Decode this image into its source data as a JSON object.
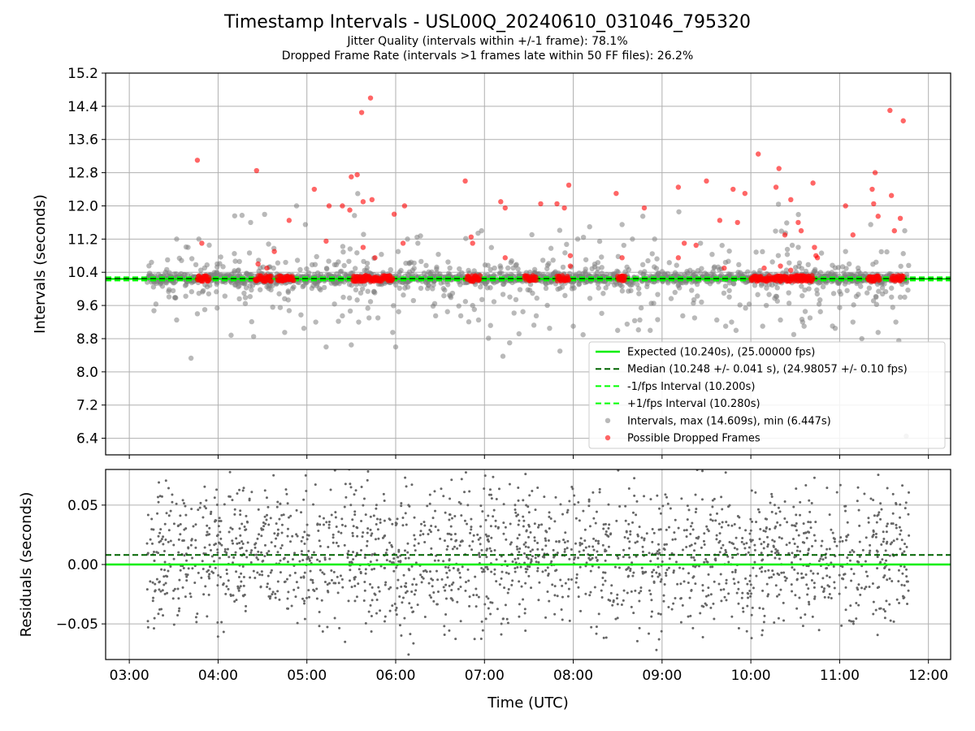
{
  "title": "Timestamp Intervals - USL00Q_20240610_031046_795320",
  "subtitle_1": "Jitter Quality (intervals within +/-1 frame): 78.1%",
  "subtitle_2": "Dropped Frame Rate (intervals >1 frames late within 50 FF files): 26.2%",
  "colors": {
    "expected": "#00ee00",
    "median": "#006400",
    "interval_bounds": "#00ff00",
    "intervals": "#808080",
    "dropped": "#ff0000",
    "grid": "#b0b0b0"
  },
  "chart_data": [
    {
      "type": "scatter",
      "panel": "top",
      "ylabel": "Intervals (seconds)",
      "ylim": [
        6.0,
        15.2
      ],
      "yticks": [
        "6.4",
        "7.2",
        "8.0",
        "8.8",
        "9.6",
        "10.4",
        "11.2",
        "12.0",
        "12.8",
        "13.6",
        "14.4",
        "15.2"
      ],
      "xlim": [
        "02:44",
        "12:15"
      ],
      "xticks": [
        "03:00",
        "04:00",
        "05:00",
        "06:00",
        "07:00",
        "08:00",
        "09:00",
        "10:00",
        "11:00",
        "12:00"
      ],
      "grid": true,
      "legend_position": "lower-right",
      "lines": [
        {
          "label": "Expected (10.240s), (25.00000 fps)",
          "y": 10.24,
          "style": "solid"
        },
        {
          "label": "Median (10.248 +/- 0.041 s), (24.98057 +/- 0.10 fps)",
          "y": 10.248,
          "style": "dashed"
        },
        {
          "label": "-1/fps Interval (10.200s)",
          "y": 10.2,
          "style": "dashed"
        },
        {
          "label": "+1/fps Interval (10.280s)",
          "y": 10.28,
          "style": "dashed"
        }
      ],
      "scatter_series": [
        {
          "label": "Intervals, max (14.609s), min (6.447s)",
          "approx_points": 2100
        },
        {
          "label": "Possible Dropped Frames",
          "outliers": [
            [
              "03:46",
              13.1
            ],
            [
              "03:49",
              11.1
            ],
            [
              "04:26",
              12.85
            ],
            [
              "04:27",
              10.6
            ],
            [
              "04:33",
              10.5
            ],
            [
              "04:38",
              10.9
            ],
            [
              "04:48",
              11.65
            ],
            [
              "05:05",
              12.4
            ],
            [
              "05:13",
              11.15
            ],
            [
              "05:15",
              12.0
            ],
            [
              "05:24",
              12.0
            ],
            [
              "05:29",
              11.9
            ],
            [
              "05:30",
              12.7
            ],
            [
              "05:34",
              12.75
            ],
            [
              "05:37",
              14.25
            ],
            [
              "05:38",
              12.1
            ],
            [
              "05:38",
              11.0
            ],
            [
              "05:43",
              14.6
            ],
            [
              "05:44",
              12.15
            ],
            [
              "05:46",
              10.75
            ],
            [
              "05:59",
              11.8
            ],
            [
              "06:05",
              11.1
            ],
            [
              "06:06",
              12.0
            ],
            [
              "06:47",
              12.6
            ],
            [
              "06:51",
              11.25
            ],
            [
              "06:52",
              11.1
            ],
            [
              "07:11",
              12.1
            ],
            [
              "07:14",
              11.95
            ],
            [
              "07:14",
              10.75
            ],
            [
              "07:38",
              12.05
            ],
            [
              "07:49",
              12.05
            ],
            [
              "07:54",
              11.95
            ],
            [
              "07:57",
              12.5
            ],
            [
              "07:58",
              10.55
            ],
            [
              "07:58",
              10.8
            ],
            [
              "08:29",
              12.3
            ],
            [
              "08:33",
              10.75
            ],
            [
              "08:48",
              11.95
            ],
            [
              "09:11",
              12.45
            ],
            [
              "09:11",
              10.75
            ],
            [
              "09:15",
              11.1
            ],
            [
              "09:23",
              11.05
            ],
            [
              "09:30",
              12.6
            ],
            [
              "09:39",
              11.65
            ],
            [
              "09:42",
              10.5
            ],
            [
              "09:48",
              12.4
            ],
            [
              "09:51",
              11.6
            ],
            [
              "09:56",
              12.3
            ],
            [
              "10:05",
              13.25
            ],
            [
              "10:09",
              10.5
            ],
            [
              "10:17",
              12.45
            ],
            [
              "10:19",
              12.9
            ],
            [
              "10:20",
              10.55
            ],
            [
              "10:23",
              11.3
            ],
            [
              "10:27",
              12.15
            ],
            [
              "10:27",
              10.45
            ],
            [
              "10:32",
              11.6
            ],
            [
              "10:34",
              11.4
            ],
            [
              "10:37",
              10.3
            ],
            [
              "10:42",
              12.55
            ],
            [
              "10:43",
              11.0
            ],
            [
              "10:44",
              10.8
            ],
            [
              "10:45",
              10.75
            ],
            [
              "11:04",
              12.0
            ],
            [
              "11:09",
              11.3
            ],
            [
              "11:22",
              12.4
            ],
            [
              "11:23",
              12.05
            ],
            [
              "11:24",
              12.8
            ],
            [
              "11:26",
              11.75
            ],
            [
              "11:34",
              14.3
            ],
            [
              "11:35",
              12.25
            ],
            [
              "11:37",
              11.4
            ],
            [
              "11:41",
              11.7
            ],
            [
              "11:43",
              14.05
            ]
          ]
        }
      ]
    },
    {
      "type": "scatter",
      "panel": "bottom",
      "ylabel": "Residuals (seconds)",
      "xlabel": "Time (UTC)",
      "ylim": [
        -0.08,
        0.08
      ],
      "yticks": [
        "−0.05",
        "0.00",
        "0.05"
      ],
      "xlim": [
        "02:44",
        "12:15"
      ],
      "xticks": [
        "03:00",
        "04:00",
        "05:00",
        "06:00",
        "07:00",
        "08:00",
        "09:00",
        "10:00",
        "11:00",
        "12:00"
      ],
      "grid": true,
      "lines": [
        {
          "y": 0.0,
          "style": "solid"
        },
        {
          "y": 0.008,
          "style": "dashed"
        }
      ],
      "residual_spread": "approximately uniform between -0.08 and 0.08, centered near 0.008"
    }
  ]
}
